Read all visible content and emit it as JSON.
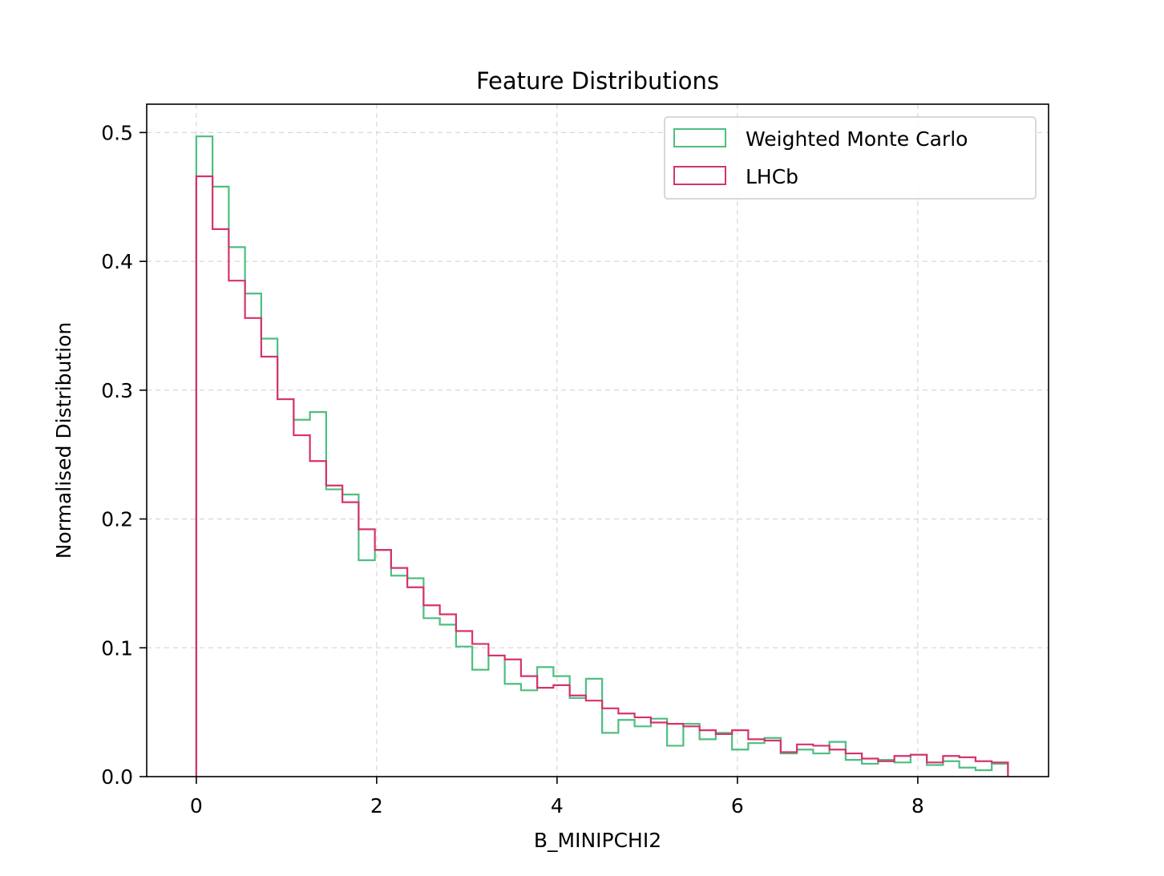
{
  "chart_data": {
    "type": "histogram-step",
    "title": "Feature Distributions",
    "xlabel": "B_MINIPCHI2",
    "ylabel": "Normalised Distribution",
    "xlim": [
      -0.55,
      9.45
    ],
    "ylim": [
      0.0,
      0.522
    ],
    "xticks": [
      0,
      2,
      4,
      6,
      8
    ],
    "yticks": [
      0.0,
      0.1,
      0.2,
      0.3,
      0.4,
      0.5
    ],
    "grid": true,
    "legend_position": "top-right",
    "bin_edges": [
      0.0,
      0.18,
      0.36,
      0.54,
      0.72,
      0.9,
      1.08,
      1.26,
      1.44,
      1.62,
      1.8,
      1.98,
      2.16,
      2.34,
      2.52,
      2.7,
      2.88,
      3.06,
      3.24,
      3.42,
      3.6,
      3.78,
      3.96,
      4.14,
      4.32,
      4.5,
      4.68,
      4.86,
      5.04,
      5.22,
      5.4,
      5.58,
      5.76,
      5.94,
      6.12,
      6.3,
      6.48,
      6.66,
      6.84,
      7.02,
      7.2,
      7.38,
      7.56,
      7.74,
      7.92,
      8.1,
      8.28,
      8.46,
      8.64,
      8.82,
      9.0
    ],
    "series": [
      {
        "name": "Weighted Monte Carlo",
        "color": "#4dbf7f",
        "values": [
          0.497,
          0.458,
          0.411,
          0.375,
          0.34,
          0.293,
          0.277,
          0.283,
          0.223,
          0.219,
          0.168,
          0.176,
          0.156,
          0.154,
          0.123,
          0.118,
          0.101,
          0.083,
          0.094,
          0.072,
          0.067,
          0.085,
          0.078,
          0.061,
          0.076,
          0.034,
          0.044,
          0.039,
          0.045,
          0.024,
          0.041,
          0.029,
          0.034,
          0.021,
          0.026,
          0.03,
          0.018,
          0.021,
          0.018,
          0.027,
          0.013,
          0.01,
          0.013,
          0.011,
          0.017,
          0.009,
          0.012,
          0.007,
          0.005,
          0.01
        ]
      },
      {
        "name": "LHCb",
        "color": "#d6336c",
        "values": [
          0.466,
          0.425,
          0.385,
          0.356,
          0.326,
          0.293,
          0.265,
          0.245,
          0.226,
          0.213,
          0.192,
          0.176,
          0.162,
          0.147,
          0.133,
          0.126,
          0.113,
          0.103,
          0.094,
          0.091,
          0.078,
          0.069,
          0.071,
          0.063,
          0.059,
          0.053,
          0.049,
          0.046,
          0.042,
          0.041,
          0.039,
          0.036,
          0.033,
          0.036,
          0.029,
          0.028,
          0.019,
          0.025,
          0.024,
          0.021,
          0.018,
          0.014,
          0.012,
          0.016,
          0.017,
          0.011,
          0.016,
          0.015,
          0.012,
          0.011
        ]
      }
    ]
  }
}
